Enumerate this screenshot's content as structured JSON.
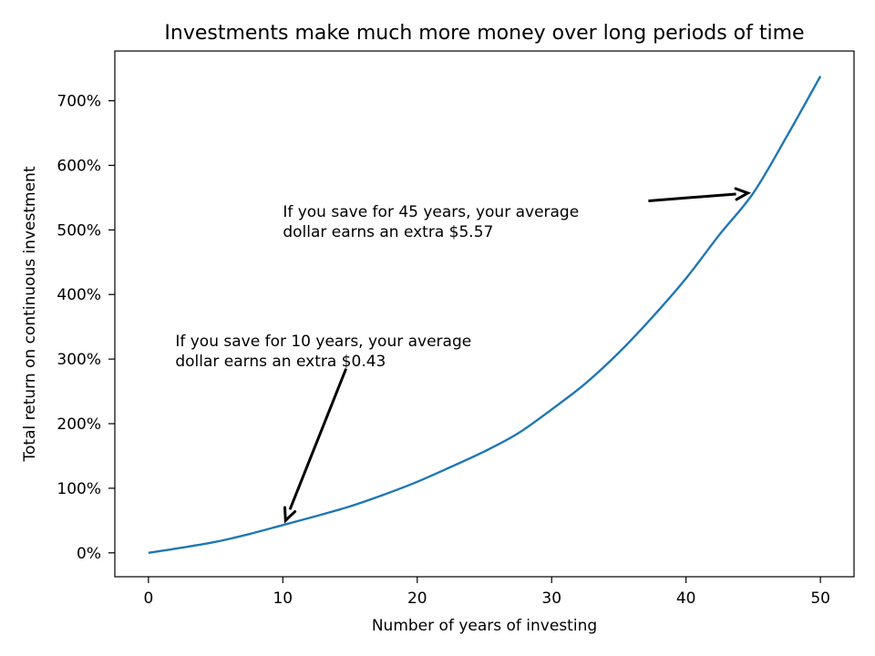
{
  "chart_data": {
    "type": "line",
    "title": "Investments make much more money over long periods of time",
    "xlabel": "Number of years of investing",
    "ylabel": "Total return on continuous investment",
    "xlim": [
      -2.5,
      52.5
    ],
    "ylim": [
      -37,
      777
    ],
    "x_ticks": [
      0,
      10,
      20,
      30,
      40,
      50
    ],
    "y_ticks": [
      0,
      100,
      200,
      300,
      400,
      500,
      600,
      700
    ],
    "y_tick_labels": [
      "0%",
      "100%",
      "200%",
      "300%",
      "400%",
      "500%",
      "600%",
      "700%"
    ],
    "grid": false,
    "series": [
      {
        "color": "#1f77b4",
        "x": [
          0,
          2.5,
          5,
          7.5,
          10,
          12.5,
          15,
          17.5,
          20,
          22.5,
          25,
          27.5,
          30,
          32.5,
          35,
          37.5,
          40,
          42.5,
          45,
          47.5,
          50
        ],
        "y": [
          0,
          8,
          17,
          29,
          43,
          57,
          72,
          90,
          110,
          133,
          157,
          185,
          222,
          262,
          310,
          365,
          425,
          493,
          557,
          645,
          738
        ]
      }
    ],
    "annotations": [
      {
        "lines": [
          "If you save for 10 years, your average",
          "dollar earns an extra $0.43"
        ],
        "text_x": 2.0,
        "text_y": 320,
        "tail_x": 14.7,
        "tail_y": 285,
        "head_x": 10.2,
        "head_y": 50
      },
      {
        "lines": [
          "If you save for 45 years, your average",
          "dollar earns an extra $5.57"
        ],
        "text_x": 10.0,
        "text_y": 520,
        "tail_x": 37.2,
        "tail_y": 545,
        "head_x": 44.6,
        "head_y": 557
      }
    ]
  }
}
